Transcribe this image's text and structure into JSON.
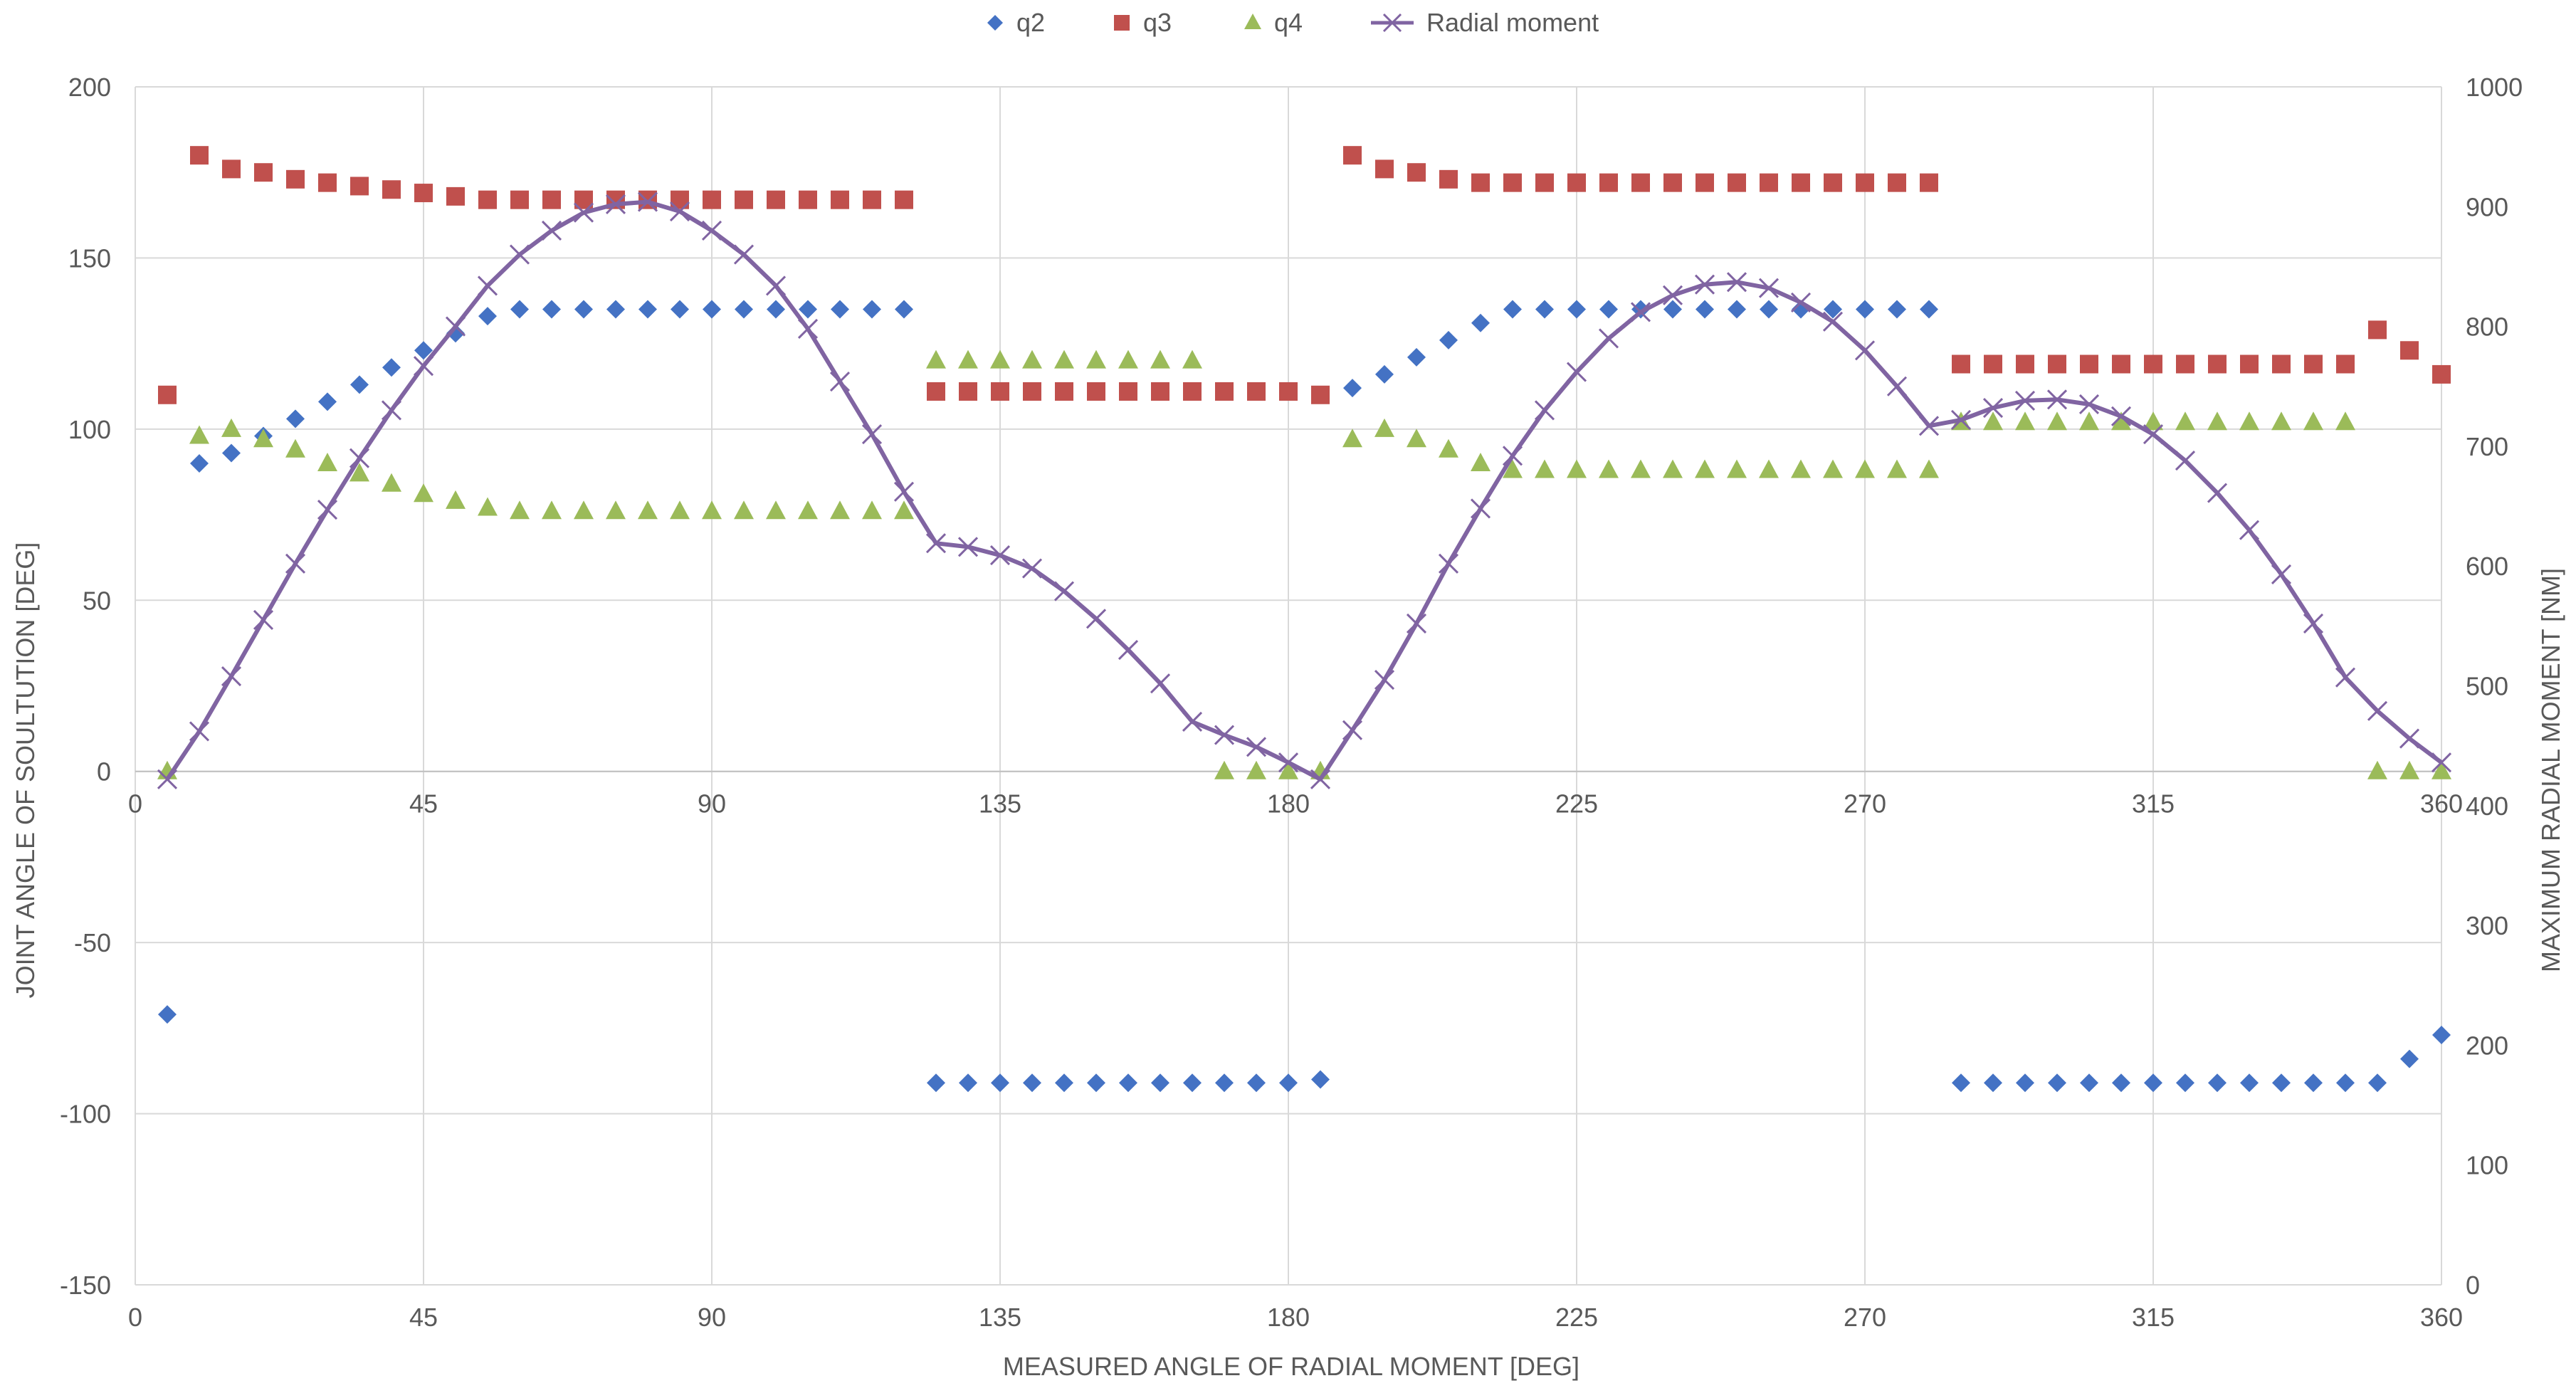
{
  "chart_data": {
    "type": "scatter",
    "title": "",
    "xlabel": "MEASURED ANGLE OF RADIAL MOMENT [DEG]",
    "ylabel": "JOINT ANGLE OF SOULTUTION [DEG]",
    "y2label": "MAXIMUM RADIAL MOMENT [NM]",
    "xlim": [
      0,
      360
    ],
    "ylim": [
      -150,
      200
    ],
    "y2lim": [
      0,
      1000
    ],
    "xticks": [
      0,
      45,
      90,
      135,
      180,
      225,
      270,
      315,
      360
    ],
    "yticks": [
      -150,
      -100,
      -50,
      0,
      50,
      100,
      150,
      200
    ],
    "y2ticks": [
      0,
      100,
      200,
      300,
      400,
      500,
      600,
      700,
      800,
      900,
      1000
    ],
    "secondary_x_axis_at_y": 0,
    "grid": true,
    "legend_position": "top",
    "series": [
      {
        "name": "q2",
        "kind": "scatter",
        "marker": "diamond",
        "color": "#4472C4",
        "axis": "left",
        "points": [
          [
            5,
            -71
          ],
          [
            10,
            90
          ],
          [
            15,
            93
          ],
          [
            20,
            98
          ],
          [
            25,
            103
          ],
          [
            30,
            108
          ],
          [
            35,
            113
          ],
          [
            40,
            118
          ],
          [
            45,
            123
          ],
          [
            50,
            128
          ],
          [
            55,
            133
          ],
          [
            60,
            135
          ],
          [
            65,
            135
          ],
          [
            70,
            135
          ],
          [
            75,
            135
          ],
          [
            80,
            135
          ],
          [
            85,
            135
          ],
          [
            90,
            135
          ],
          [
            95,
            135
          ],
          [
            100,
            135
          ],
          [
            105,
            135
          ],
          [
            110,
            135
          ],
          [
            115,
            135
          ],
          [
            120,
            135
          ],
          [
            125,
            -91
          ],
          [
            130,
            -91
          ],
          [
            135,
            -91
          ],
          [
            140,
            -91
          ],
          [
            145,
            -91
          ],
          [
            150,
            -91
          ],
          [
            155,
            -91
          ],
          [
            160,
            -91
          ],
          [
            165,
            -91
          ],
          [
            170,
            -91
          ],
          [
            175,
            -91
          ],
          [
            180,
            -91
          ],
          [
            185,
            -90
          ],
          [
            190,
            112
          ],
          [
            195,
            116
          ],
          [
            200,
            121
          ],
          [
            205,
            126
          ],
          [
            210,
            131
          ],
          [
            215,
            135
          ],
          [
            220,
            135
          ],
          [
            225,
            135
          ],
          [
            230,
            135
          ],
          [
            235,
            135
          ],
          [
            240,
            135
          ],
          [
            245,
            135
          ],
          [
            250,
            135
          ],
          [
            255,
            135
          ],
          [
            260,
            135
          ],
          [
            265,
            135
          ],
          [
            270,
            135
          ],
          [
            275,
            135
          ],
          [
            280,
            135
          ],
          [
            285,
            -91
          ],
          [
            290,
            -91
          ],
          [
            295,
            -91
          ],
          [
            300,
            -91
          ],
          [
            305,
            -91
          ],
          [
            310,
            -91
          ],
          [
            315,
            -91
          ],
          [
            320,
            -91
          ],
          [
            325,
            -91
          ],
          [
            330,
            -91
          ],
          [
            335,
            -91
          ],
          [
            340,
            -91
          ],
          [
            345,
            -91
          ],
          [
            350,
            -91
          ],
          [
            355,
            -84
          ],
          [
            360,
            -77
          ]
        ]
      },
      {
        "name": "q3",
        "kind": "scatter",
        "marker": "square",
        "color": "#C0504D",
        "axis": "left",
        "points": [
          [
            5,
            110
          ],
          [
            10,
            180
          ],
          [
            15,
            176
          ],
          [
            20,
            175
          ],
          [
            25,
            173
          ],
          [
            30,
            172
          ],
          [
            35,
            171
          ],
          [
            40,
            170
          ],
          [
            45,
            169
          ],
          [
            50,
            168
          ],
          [
            55,
            167
          ],
          [
            60,
            167
          ],
          [
            65,
            167
          ],
          [
            70,
            167
          ],
          [
            75,
            167
          ],
          [
            80,
            167
          ],
          [
            85,
            167
          ],
          [
            90,
            167
          ],
          [
            95,
            167
          ],
          [
            100,
            167
          ],
          [
            105,
            167
          ],
          [
            110,
            167
          ],
          [
            115,
            167
          ],
          [
            120,
            167
          ],
          [
            125,
            111
          ],
          [
            130,
            111
          ],
          [
            135,
            111
          ],
          [
            140,
            111
          ],
          [
            145,
            111
          ],
          [
            150,
            111
          ],
          [
            155,
            111
          ],
          [
            160,
            111
          ],
          [
            165,
            111
          ],
          [
            170,
            111
          ],
          [
            175,
            111
          ],
          [
            180,
            111
          ],
          [
            185,
            110
          ],
          [
            190,
            180
          ],
          [
            195,
            176
          ],
          [
            200,
            175
          ],
          [
            205,
            173
          ],
          [
            210,
            172
          ],
          [
            215,
            172
          ],
          [
            220,
            172
          ],
          [
            225,
            172
          ],
          [
            230,
            172
          ],
          [
            235,
            172
          ],
          [
            240,
            172
          ],
          [
            245,
            172
          ],
          [
            250,
            172
          ],
          [
            255,
            172
          ],
          [
            260,
            172
          ],
          [
            265,
            172
          ],
          [
            270,
            172
          ],
          [
            275,
            172
          ],
          [
            280,
            172
          ],
          [
            285,
            119
          ],
          [
            290,
            119
          ],
          [
            295,
            119
          ],
          [
            300,
            119
          ],
          [
            305,
            119
          ],
          [
            310,
            119
          ],
          [
            315,
            119
          ],
          [
            320,
            119
          ],
          [
            325,
            119
          ],
          [
            330,
            119
          ],
          [
            335,
            119
          ],
          [
            340,
            119
          ],
          [
            345,
            119
          ],
          [
            350,
            129
          ],
          [
            355,
            123
          ],
          [
            360,
            116
          ]
        ]
      },
      {
        "name": "q4",
        "kind": "scatter",
        "marker": "triangle",
        "color": "#9BBB59",
        "axis": "left",
        "points": [
          [
            5,
            0
          ],
          [
            10,
            98
          ],
          [
            15,
            100
          ],
          [
            20,
            97
          ],
          [
            25,
            94
          ],
          [
            30,
            90
          ],
          [
            35,
            87
          ],
          [
            40,
            84
          ],
          [
            45,
            81
          ],
          [
            50,
            79
          ],
          [
            55,
            77
          ],
          [
            60,
            76
          ],
          [
            65,
            76
          ],
          [
            70,
            76
          ],
          [
            75,
            76
          ],
          [
            80,
            76
          ],
          [
            85,
            76
          ],
          [
            90,
            76
          ],
          [
            95,
            76
          ],
          [
            100,
            76
          ],
          [
            105,
            76
          ],
          [
            110,
            76
          ],
          [
            115,
            76
          ],
          [
            120,
            76
          ],
          [
            125,
            120
          ],
          [
            130,
            120
          ],
          [
            135,
            120
          ],
          [
            140,
            120
          ],
          [
            145,
            120
          ],
          [
            150,
            120
          ],
          [
            155,
            120
          ],
          [
            160,
            120
          ],
          [
            165,
            120
          ],
          [
            170,
            0
          ],
          [
            175,
            0
          ],
          [
            180,
            0
          ],
          [
            185,
            0
          ],
          [
            190,
            97
          ],
          [
            195,
            100
          ],
          [
            200,
            97
          ],
          [
            205,
            94
          ],
          [
            210,
            90
          ],
          [
            215,
            88
          ],
          [
            220,
            88
          ],
          [
            225,
            88
          ],
          [
            230,
            88
          ],
          [
            235,
            88
          ],
          [
            240,
            88
          ],
          [
            245,
            88
          ],
          [
            250,
            88
          ],
          [
            255,
            88
          ],
          [
            260,
            88
          ],
          [
            265,
            88
          ],
          [
            270,
            88
          ],
          [
            275,
            88
          ],
          [
            280,
            88
          ],
          [
            285,
            102
          ],
          [
            290,
            102
          ],
          [
            295,
            102
          ],
          [
            300,
            102
          ],
          [
            305,
            102
          ],
          [
            310,
            102
          ],
          [
            315,
            102
          ],
          [
            320,
            102
          ],
          [
            325,
            102
          ],
          [
            330,
            102
          ],
          [
            335,
            102
          ],
          [
            340,
            102
          ],
          [
            345,
            102
          ],
          [
            350,
            0
          ],
          [
            355,
            0
          ],
          [
            360,
            0
          ]
        ]
      },
      {
        "name": "Radial moment",
        "kind": "line",
        "marker": "x",
        "color": "#8064A2",
        "axis": "right",
        "points": [
          [
            5,
            422
          ],
          [
            10,
            462
          ],
          [
            15,
            508
          ],
          [
            20,
            555
          ],
          [
            25,
            602
          ],
          [
            30,
            647
          ],
          [
            35,
            690
          ],
          [
            40,
            730
          ],
          [
            45,
            767
          ],
          [
            50,
            800
          ],
          [
            55,
            834
          ],
          [
            60,
            860
          ],
          [
            65,
            880
          ],
          [
            70,
            895
          ],
          [
            75,
            902
          ],
          [
            80,
            904
          ],
          [
            85,
            896
          ],
          [
            90,
            880
          ],
          [
            95,
            860
          ],
          [
            100,
            834
          ],
          [
            105,
            798
          ],
          [
            110,
            754
          ],
          [
            115,
            710
          ],
          [
            120,
            662
          ],
          [
            125,
            619
          ],
          [
            130,
            616
          ],
          [
            135,
            609
          ],
          [
            140,
            598
          ],
          [
            145,
            579
          ],
          [
            150,
            556
          ],
          [
            155,
            530
          ],
          [
            160,
            502
          ],
          [
            165,
            470
          ],
          [
            170,
            459
          ],
          [
            175,
            449
          ],
          [
            180,
            436
          ],
          [
            185,
            422
          ],
          [
            190,
            463
          ],
          [
            195,
            505
          ],
          [
            200,
            552
          ],
          [
            205,
            602
          ],
          [
            210,
            648
          ],
          [
            215,
            692
          ],
          [
            220,
            730
          ],
          [
            225,
            762
          ],
          [
            230,
            790
          ],
          [
            235,
            812
          ],
          [
            240,
            826
          ],
          [
            245,
            835
          ],
          [
            250,
            837
          ],
          [
            255,
            832
          ],
          [
            260,
            820
          ],
          [
            265,
            804
          ],
          [
            270,
            780
          ],
          [
            275,
            750
          ],
          [
            280,
            717
          ],
          [
            285,
            722
          ],
          [
            290,
            732
          ],
          [
            295,
            738
          ],
          [
            300,
            739
          ],
          [
            305,
            735
          ],
          [
            310,
            725
          ],
          [
            315,
            710
          ],
          [
            320,
            688
          ],
          [
            325,
            661
          ],
          [
            330,
            630
          ],
          [
            335,
            593
          ],
          [
            340,
            552
          ],
          [
            345,
            507
          ],
          [
            350,
            479
          ],
          [
            355,
            456
          ],
          [
            360,
            436
          ]
        ]
      }
    ]
  }
}
